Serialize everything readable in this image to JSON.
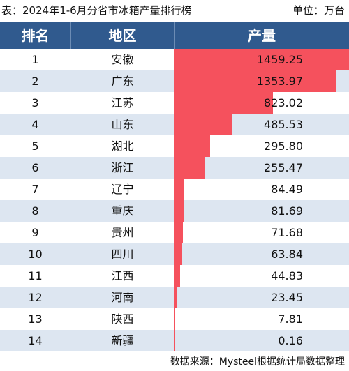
{
  "caption": {
    "title": "表：2024年1-6月分省市冰箱产量排行榜",
    "unit": "单位：万台"
  },
  "table_header": {
    "rank": "排名",
    "region": "地区",
    "output": "产量"
  },
  "source": "数据来源：Mysteel根据统计局数据整理",
  "colors": {
    "header_bg": "#305a8e",
    "bar": "#f5515d",
    "row_alt": "#dde6f1"
  },
  "chart_data": {
    "type": "table",
    "title": "表：2024年1-6月分省市冰箱产量排行榜",
    "unit": "单位：万台",
    "columns": [
      "排名",
      "地区",
      "产量"
    ],
    "rows": [
      {
        "rank": "1",
        "region": "安徽",
        "value": 1459.25,
        "label": "1459.25"
      },
      {
        "rank": "2",
        "region": "广东",
        "value": 1353.97,
        "label": "1353.97"
      },
      {
        "rank": "3",
        "region": "江苏",
        "value": 823.02,
        "label": "823.02"
      },
      {
        "rank": "4",
        "region": "山东",
        "value": 485.53,
        "label": "485.53"
      },
      {
        "rank": "5",
        "region": "湖北",
        "value": 295.8,
        "label": "295.80"
      },
      {
        "rank": "6",
        "region": "浙江",
        "value": 255.47,
        "label": "255.47"
      },
      {
        "rank": "7",
        "region": "辽宁",
        "value": 84.49,
        "label": "84.49"
      },
      {
        "rank": "8",
        "region": "重庆",
        "value": 81.69,
        "label": "81.69"
      },
      {
        "rank": "9",
        "region": "贵州",
        "value": 71.68,
        "label": "71.68"
      },
      {
        "rank": "10",
        "region": "四川",
        "value": 63.84,
        "label": "63.84"
      },
      {
        "rank": "11",
        "region": "江西",
        "value": 44.83,
        "label": "44.83"
      },
      {
        "rank": "12",
        "region": "河南",
        "value": 23.45,
        "label": "23.45"
      },
      {
        "rank": "13",
        "region": "陕西",
        "value": 7.81,
        "label": "7.81"
      },
      {
        "rank": "14",
        "region": "新疆",
        "value": 0.16,
        "label": "0.16"
      }
    ]
  }
}
